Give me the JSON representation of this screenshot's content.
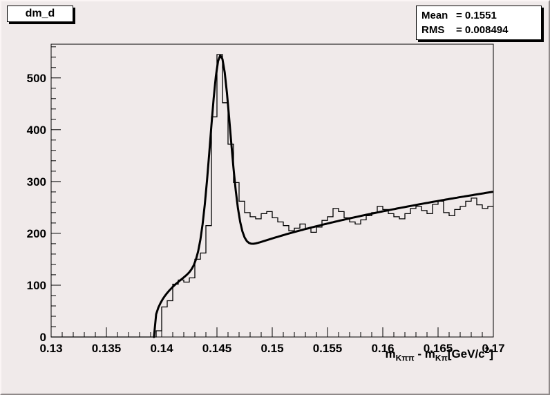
{
  "title_box": {
    "label": "dm_d"
  },
  "stats_box": {
    "rows": [
      {
        "name": "Mean",
        "value": "= 0.1551"
      },
      {
        "name": "RMS",
        "value": "= 0.008494"
      }
    ]
  },
  "xlabel_parts": {
    "base1": "m",
    "sub1": "Kππ",
    "middle": " - m",
    "sub2": "Kπ",
    "unit": "[GeV/c",
    "exp": "2",
    "close": "]"
  },
  "colors": {
    "canvas_bg": "#f0eaea",
    "pave_bg": "#ffffff",
    "line": "#000000"
  },
  "chart_data": {
    "type": "bar",
    "title": "dm_d",
    "xlabel": "m_Kpipi - m_Kpi [GeV/c^2]",
    "ylabel": "",
    "xlim": [
      0.13,
      0.17
    ],
    "ylim": [
      0,
      565
    ],
    "grid": false,
    "legend": false,
    "x_minor": 0.001,
    "x_major": 0.005,
    "y_minor": 20,
    "y_major": 100,
    "xticks": [
      {
        "v": 0.13,
        "label": "0.13"
      },
      {
        "v": 0.135,
        "label": "0.135"
      },
      {
        "v": 0.14,
        "label": "0.14"
      },
      {
        "v": 0.145,
        "label": "0.145"
      },
      {
        "v": 0.15,
        "label": "0.15"
      },
      {
        "v": 0.155,
        "label": "0.155"
      },
      {
        "v": 0.16,
        "label": "0.16"
      },
      {
        "v": 0.165,
        "label": "0.165"
      },
      {
        "v": 0.17,
        "label": "0.17"
      }
    ],
    "yticks": [
      {
        "v": 0,
        "label": "0"
      },
      {
        "v": 100,
        "label": "100"
      },
      {
        "v": 200,
        "label": "200"
      },
      {
        "v": 300,
        "label": "300"
      },
      {
        "v": 400,
        "label": "400"
      },
      {
        "v": 500,
        "label": "500"
      }
    ],
    "histogram": {
      "bin_start": 0.13,
      "bin_width": 0.0005,
      "values": [
        0,
        0,
        0,
        0,
        0,
        0,
        0,
        0,
        0,
        0,
        0,
        0,
        0,
        0,
        0,
        0,
        0,
        0,
        0,
        12,
        58,
        70,
        102,
        110,
        106,
        114,
        150,
        162,
        215,
        425,
        545,
        452,
        372,
        298,
        262,
        240,
        232,
        228,
        238,
        242,
        230,
        222,
        215,
        205,
        210,
        218,
        210,
        202,
        212,
        225,
        232,
        248,
        242,
        230,
        222,
        218,
        226,
        234,
        240,
        252,
        246,
        238,
        232,
        228,
        238,
        248,
        252,
        244,
        238,
        256,
        262,
        240,
        234,
        246,
        252,
        262,
        268,
        255,
        248,
        252
      ]
    },
    "fit": {
      "threshold": 0.1393,
      "bg_amp": 1010,
      "bg_power": 0.368,
      "gauss_mean": 0.1453,
      "gauss_sigma": 0.0009,
      "gauss_height": 390,
      "sample_step": 0.0002
    },
    "stats": {
      "mean": "0.1551",
      "rms": "0.008494"
    }
  }
}
